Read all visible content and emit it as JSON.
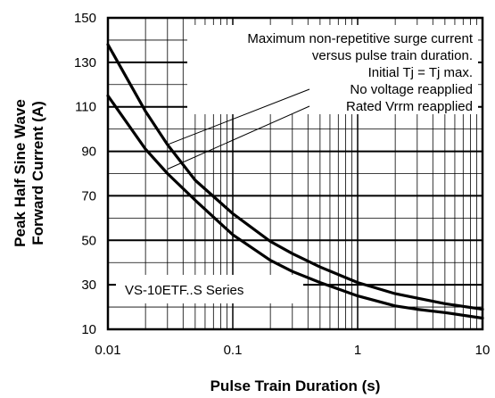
{
  "chart_data": {
    "type": "line",
    "xscale": "log",
    "xlabel": "Pulse Train Duration (s)",
    "ylabel_lines": [
      "Peak Half Sine Wave",
      "Forward Current (A)"
    ],
    "xlim": [
      0.01,
      10
    ],
    "ylim": [
      10,
      150
    ],
    "xticks": [
      {
        "value": 0.01,
        "label": "0.01"
      },
      {
        "value": 0.1,
        "label": "0.1"
      },
      {
        "value": 1,
        "label": "1"
      },
      {
        "value": 10,
        "label": "10"
      }
    ],
    "yticks": [
      {
        "value": 10,
        "label": "10"
      },
      {
        "value": 30,
        "label": "30"
      },
      {
        "value": 50,
        "label": "50"
      },
      {
        "value": 70,
        "label": "70"
      },
      {
        "value": 90,
        "label": "90"
      },
      {
        "value": 110,
        "label": "110"
      },
      {
        "value": 130,
        "label": "130"
      },
      {
        "value": 150,
        "label": "150"
      }
    ],
    "grid": true,
    "annotation_lines": [
      "Maximum non-repetitive surge current",
      "versus pulse train duration.",
      "Initial Tj = Tj max.",
      "No voltage reapplied",
      "Rated Vrrm reapplied"
    ],
    "series_label": "VS-10ETF..S Series",
    "series": [
      {
        "x": [
          0.01,
          0.02,
          0.03,
          0.05,
          0.1,
          0.2,
          0.3,
          0.5,
          1,
          2,
          3,
          5,
          10
        ],
        "y": [
          138,
          108,
          93,
          77,
          62,
          49.5,
          44,
          38,
          31,
          26,
          24,
          21.5,
          19
        ]
      },
      {
        "x": [
          0.01,
          0.02,
          0.03,
          0.05,
          0.1,
          0.2,
          0.3,
          0.5,
          1,
          2,
          3,
          5,
          10
        ],
        "y": [
          115,
          91,
          80,
          68,
          52.5,
          41,
          36,
          31,
          25,
          20.5,
          19,
          17.5,
          15
        ]
      }
    ],
    "leader_targets": [
      {
        "x": 0.03,
        "y": 93
      },
      {
        "x": 0.03,
        "y": 82
      }
    ]
  }
}
